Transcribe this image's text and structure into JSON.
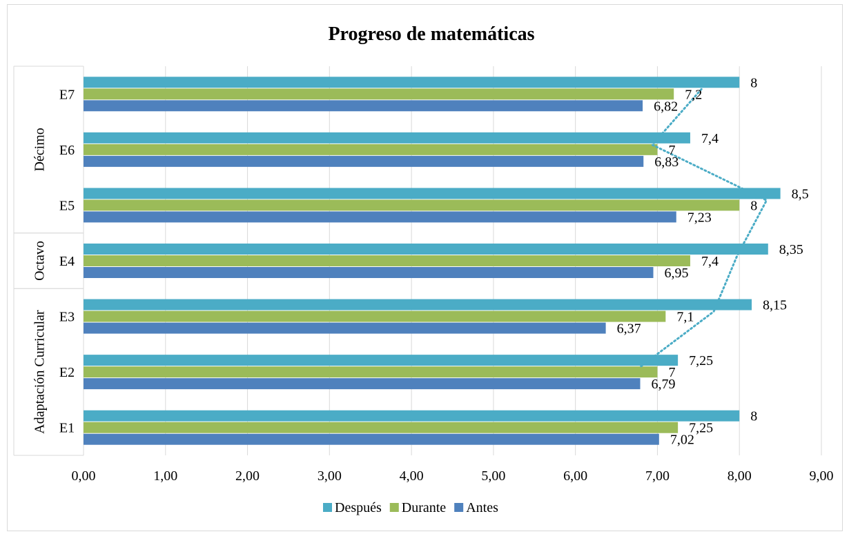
{
  "chart_data": {
    "type": "bar",
    "orientation": "horizontal",
    "title": "Progreso de matemáticas",
    "categories": [
      "E1",
      "E2",
      "E3",
      "E4",
      "E5",
      "E6",
      "E7"
    ],
    "groups": [
      {
        "label": "Adaptación Curricular",
        "categories": [
          "E1",
          "E2",
          "E3"
        ]
      },
      {
        "label": "Octavo",
        "categories": [
          "E4"
        ]
      },
      {
        "label": "Décimo",
        "categories": [
          "E5",
          "E6",
          "E7"
        ]
      }
    ],
    "series": [
      {
        "name": "Antes",
        "color": "#4f81bd",
        "values": [
          7.02,
          6.79,
          6.37,
          6.95,
          7.23,
          6.83,
          6.82
        ],
        "labels": [
          "7,02",
          "6,79",
          "6,37",
          "6,95",
          "7,23",
          "6,83",
          "6,82"
        ]
      },
      {
        "name": "Durante",
        "color": "#9bbb59",
        "values": [
          7.25,
          7.0,
          7.1,
          7.4,
          8.0,
          7.0,
          7.2
        ],
        "labels": [
          "7,25",
          "7",
          "7,1",
          "7,4",
          "8",
          "7",
          "7,2"
        ]
      },
      {
        "name": "Después",
        "color": "#4bacc6",
        "values": [
          8.0,
          7.25,
          8.15,
          8.35,
          8.5,
          7.4,
          8.0
        ],
        "labels": [
          "8",
          "7,25",
          "8,15",
          "8,35",
          "8,5",
          "7,4",
          "8"
        ]
      }
    ],
    "trendline": {
      "series": "Después",
      "style": "dotted",
      "color": "#4bacc6"
    },
    "xlim": [
      0,
      9
    ],
    "xticks": [
      0,
      1,
      2,
      3,
      4,
      5,
      6,
      7,
      8,
      9
    ],
    "xtick_labels": [
      "0,00",
      "1,00",
      "2,00",
      "3,00",
      "4,00",
      "5,00",
      "6,00",
      "7,00",
      "8,00",
      "9,00"
    ],
    "grid": true,
    "legend_position": "bottom",
    "legend_order": [
      "Después",
      "Durante",
      "Antes"
    ]
  }
}
